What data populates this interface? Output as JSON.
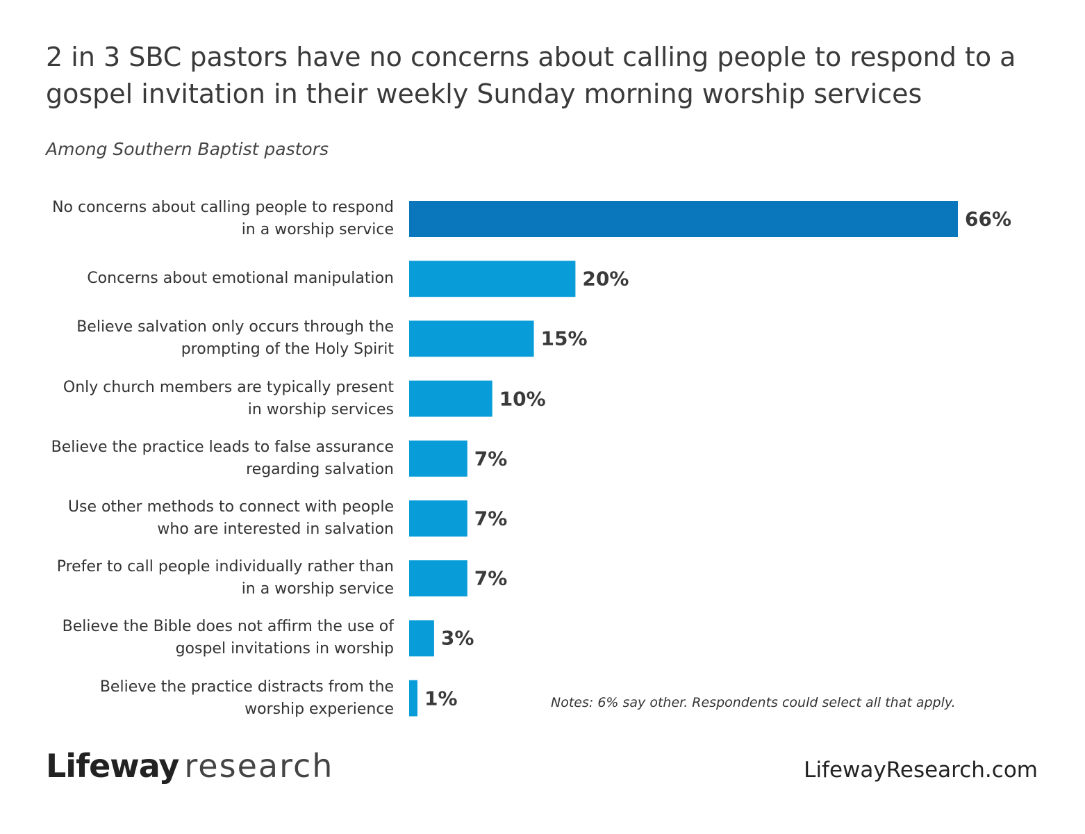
{
  "chart_data": {
    "type": "hbar",
    "title": "2 in 3 SBC pastors have no concerns about calling people to respond to a gospel invitation in their weekly Sunday morning worship services",
    "subtitle": "Among Southern Baptist pastors",
    "categories": [
      "No concerns about calling people to respond in a worship service",
      "Concerns about emotional manipulation",
      "Believe salvation only occurs through the prompting of the Holy Spirit",
      "Only church members are typically present in worship services",
      "Believe the practice leads to false assurance regarding salvation",
      "Use other methods to connect with people who are interested in salvation",
      "Prefer to call people individually rather than in a worship service",
      "Believe the Bible does not affirm the use of gospel invitations in worship",
      "Believe the practice distracts from the worship experience"
    ],
    "values": [
      66,
      20,
      15,
      10,
      7,
      7,
      7,
      3,
      1
    ],
    "value_labels": [
      "66%",
      "20%",
      "15%",
      "10%",
      "7%",
      "7%",
      "7%",
      "3%",
      "1%"
    ],
    "colors": [
      "#0a76bc",
      "#089cd8",
      "#089cd8",
      "#089cd8",
      "#089cd8",
      "#089cd8",
      "#089cd8",
      "#089cd8",
      "#089cd8"
    ],
    "note": "Notes: 6% say other. Respondents could select all that apply."
  },
  "footer": {
    "brand": "Lifeway",
    "brand_suffix": "research",
    "website": "LifewayResearch.com"
  }
}
